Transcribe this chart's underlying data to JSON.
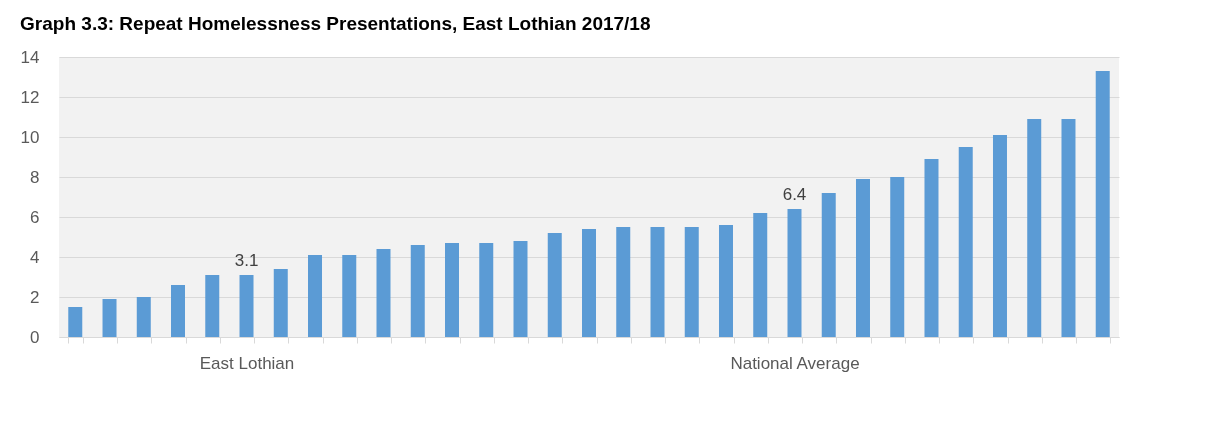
{
  "chart_data": {
    "type": "bar",
    "title": "Graph 3.3: Repeat Homelessness Presentations, East Lothian 2017/18",
    "categories": [
      null,
      null,
      null,
      null,
      null,
      null,
      null,
      "East Lothian",
      null,
      null,
      null,
      null,
      null,
      null,
      null,
      null,
      null,
      null,
      null,
      null,
      null,
      null,
      null,
      "National Average",
      null,
      null,
      null,
      null,
      null,
      null,
      null,
      null,
      null
    ],
    "values": [
      null,
      null,
      1.5,
      1.9,
      2.0,
      2.6,
      3.1,
      3.1,
      3.4,
      4.1,
      4.1,
      4.4,
      4.6,
      4.7,
      4.7,
      4.8,
      5.2,
      5.4,
      5.5,
      5.5,
      5.5,
      5.6,
      6.2,
      6.4,
      7.2,
      7.9,
      8.0,
      8.9,
      9.5,
      10.1,
      10.9,
      10.9,
      13.3
    ],
    "value_labels": [
      null,
      null,
      null,
      null,
      null,
      null,
      null,
      "3.1",
      null,
      null,
      null,
      null,
      null,
      null,
      null,
      null,
      null,
      null,
      null,
      null,
      null,
      null,
      null,
      "6.4",
      null,
      null,
      null,
      null,
      null,
      null,
      null,
      null,
      null
    ],
    "color": "#5b9bd5",
    "ylim": [
      0,
      14
    ],
    "yticks": [
      0,
      2,
      4,
      6,
      8,
      10,
      12,
      14
    ],
    "grid": "y"
  }
}
